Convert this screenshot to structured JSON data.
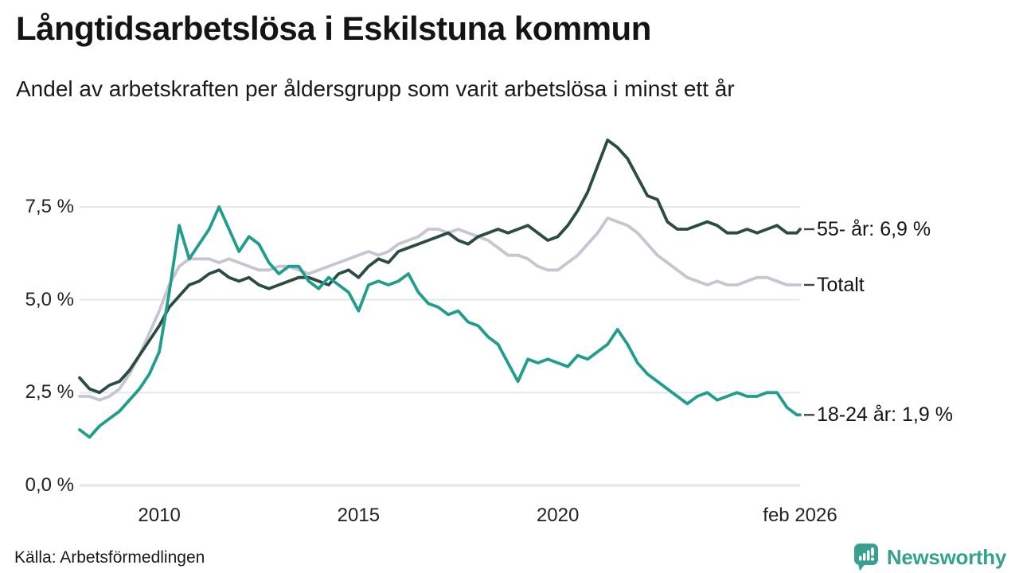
{
  "header": {
    "title": "Långtidsarbetslösa i Eskilstuna kommun",
    "subtitle": "Andel av arbetskraften per åldersgrupp som varit arbetslösa i minst ett år"
  },
  "footer": {
    "source": "Källa: Arbetsförmedlingen",
    "brand": "Newsworthy",
    "brand_color": "#34a191"
  },
  "chart_data": {
    "type": "line",
    "title": "Långtidsarbetslösa i Eskilstuna kommun",
    "subtitle": "Andel av arbetskraften per åldersgrupp som varit arbetslösa i minst ett år",
    "x_unit": "decimal_year",
    "xlim": [
      2008.0,
      2026.08
    ],
    "ylim": [
      0,
      9.6
    ],
    "grid": true,
    "gridline_color": "#e7e6ec",
    "tick_dash_color": "#444444",
    "y_ticks": [
      {
        "label": "0,0 %",
        "value": 0
      },
      {
        "label": "2,5 %",
        "value": 2.5
      },
      {
        "label": "5,0 %",
        "value": 5
      },
      {
        "label": "7,5 %",
        "value": 7.5
      }
    ],
    "x_ticks": [
      {
        "label": "2010",
        "x": 2010
      },
      {
        "label": "2015",
        "x": 2015
      },
      {
        "label": "2020",
        "x": 2020
      },
      {
        "label": "feb 2026",
        "x": 2026.08
      }
    ],
    "x": [
      2008,
      2008.25,
      2008.5,
      2008.75,
      2009,
      2009.25,
      2009.5,
      2009.75,
      2010,
      2010.25,
      2010.5,
      2010.75,
      2011,
      2011.25,
      2011.5,
      2011.75,
      2012,
      2012.25,
      2012.5,
      2012.75,
      2013,
      2013.25,
      2013.5,
      2013.75,
      2014,
      2014.25,
      2014.5,
      2014.75,
      2015,
      2015.25,
      2015.5,
      2015.75,
      2016,
      2016.25,
      2016.5,
      2016.75,
      2017,
      2017.25,
      2017.5,
      2017.75,
      2018,
      2018.25,
      2018.5,
      2018.75,
      2019,
      2019.25,
      2019.5,
      2019.75,
      2020,
      2020.25,
      2020.5,
      2020.75,
      2021,
      2021.25,
      2021.5,
      2021.75,
      2022,
      2022.25,
      2022.5,
      2022.75,
      2023,
      2023.25,
      2023.5,
      2023.75,
      2024,
      2024.25,
      2024.5,
      2024.75,
      2025,
      2025.25,
      2025.5,
      2025.75,
      2026,
      2026.08
    ],
    "series": [
      {
        "name": "Totalt",
        "end_label": "Totalt",
        "color": "#c7c5d2",
        "values": [
          2.4,
          2.4,
          2.3,
          2.4,
          2.6,
          3.0,
          3.5,
          4.1,
          4.7,
          5.4,
          5.9,
          6.1,
          6.1,
          6.1,
          6.0,
          6.1,
          6.0,
          5.9,
          5.8,
          5.8,
          5.9,
          5.9,
          5.8,
          5.7,
          5.8,
          5.9,
          6.0,
          6.1,
          6.2,
          6.3,
          6.2,
          6.3,
          6.5,
          6.6,
          6.7,
          6.9,
          6.9,
          6.8,
          6.9,
          6.8,
          6.7,
          6.6,
          6.4,
          6.2,
          6.2,
          6.1,
          5.9,
          5.8,
          5.8,
          6.0,
          6.2,
          6.5,
          6.8,
          7.2,
          7.1,
          7.0,
          6.8,
          6.5,
          6.2,
          6.0,
          5.8,
          5.6,
          5.5,
          5.4,
          5.5,
          5.4,
          5.4,
          5.5,
          5.6,
          5.6,
          5.5,
          5.4,
          5.4,
          5.4
        ]
      },
      {
        "name": "55- år",
        "end_label": "55- år: 6,9 %",
        "color": "#2a4c41",
        "values": [
          2.9,
          2.6,
          2.5,
          2.7,
          2.8,
          3.1,
          3.5,
          3.9,
          4.3,
          4.8,
          5.1,
          5.4,
          5.5,
          5.7,
          5.8,
          5.6,
          5.5,
          5.6,
          5.4,
          5.3,
          5.4,
          5.5,
          5.6,
          5.6,
          5.5,
          5.4,
          5.7,
          5.8,
          5.6,
          5.9,
          6.1,
          6.0,
          6.3,
          6.4,
          6.5,
          6.6,
          6.7,
          6.8,
          6.6,
          6.5,
          6.7,
          6.8,
          6.9,
          6.8,
          6.9,
          7.0,
          6.8,
          6.6,
          6.7,
          7.0,
          7.4,
          7.9,
          8.6,
          9.3,
          9.1,
          8.8,
          8.3,
          7.8,
          7.7,
          7.1,
          6.9,
          6.9,
          7.0,
          7.1,
          7.0,
          6.8,
          6.8,
          6.9,
          6.8,
          6.9,
          7.0,
          6.8,
          6.8,
          6.9
        ]
      },
      {
        "name": "18-24 år",
        "end_label": "18-24 år: 1,9 %",
        "color": "#1f9e8e",
        "values": [
          1.5,
          1.3,
          1.6,
          1.8,
          2.0,
          2.3,
          2.6,
          3.0,
          3.6,
          5.2,
          7.0,
          6.1,
          6.5,
          6.9,
          7.5,
          6.9,
          6.3,
          6.7,
          6.5,
          6.0,
          5.7,
          5.9,
          5.9,
          5.5,
          5.3,
          5.6,
          5.4,
          5.2,
          4.7,
          5.4,
          5.5,
          5.4,
          5.5,
          5.7,
          5.2,
          4.9,
          4.8,
          4.6,
          4.7,
          4.4,
          4.3,
          4.0,
          3.8,
          3.3,
          2.8,
          3.4,
          3.3,
          3.4,
          3.3,
          3.2,
          3.5,
          3.4,
          3.6,
          3.8,
          4.2,
          3.8,
          3.3,
          3.0,
          2.8,
          2.6,
          2.4,
          2.2,
          2.4,
          2.5,
          2.3,
          2.4,
          2.5,
          2.4,
          2.4,
          2.5,
          2.5,
          2.1,
          1.9,
          1.9
        ]
      }
    ]
  }
}
